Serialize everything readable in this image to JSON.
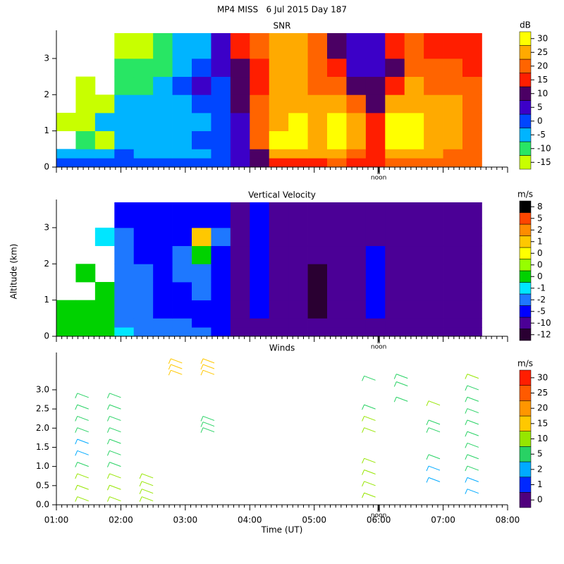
{
  "title": "MP4 MISS   6 Jul 2015 Day 187",
  "chart_data": [
    {
      "type": "heatmap",
      "title": "SNR",
      "ylabel": "Altitude (km)",
      "xlim": [
        1,
        8
      ],
      "xticks": [
        1,
        2,
        3,
        4,
        5,
        6,
        7,
        8
      ],
      "ylim": [
        0,
        3.7
      ],
      "yticks": [
        0,
        1,
        2,
        3
      ],
      "annotations": [
        {
          "text": "noon",
          "x": 6
        }
      ],
      "xbins": [
        1,
        1.3,
        1.6,
        1.9,
        2.2,
        2.5,
        2.8,
        3.1,
        3.4,
        3.7,
        4,
        4.3,
        4.6,
        4.9,
        5.2,
        5.5,
        5.8,
        6.1,
        6.4,
        6.7,
        7,
        7.3,
        7.6
      ],
      "ybins": [
        0,
        0.25,
        0.5,
        1,
        1.5,
        2,
        2.5,
        3,
        3.7
      ],
      "z": [
        [
          0,
          0,
          0,
          0,
          0,
          0,
          0,
          0,
          0,
          5,
          10,
          15,
          15,
          15,
          20,
          15,
          15,
          20,
          20,
          20,
          20,
          20
        ],
        [
          -5,
          -5,
          -5,
          0,
          -5,
          -5,
          -5,
          -5,
          0,
          5,
          10,
          25,
          25,
          25,
          25,
          20,
          15,
          25,
          25,
          25,
          20,
          20
        ],
        [
          null,
          -10,
          -15,
          -5,
          -5,
          -5,
          -5,
          0,
          0,
          5,
          20,
          30,
          30,
          25,
          30,
          25,
          15,
          30,
          30,
          25,
          25,
          20
        ],
        [
          -15,
          -15,
          -5,
          -5,
          -5,
          -5,
          -5,
          -5,
          0,
          5,
          20,
          25,
          30,
          25,
          30,
          25,
          15,
          30,
          30,
          25,
          25,
          20
        ],
        [
          null,
          -15,
          -15,
          -5,
          -5,
          -5,
          -5,
          0,
          0,
          10,
          20,
          25,
          25,
          25,
          25,
          20,
          10,
          25,
          25,
          25,
          25,
          20
        ],
        [
          null,
          -15,
          null,
          -10,
          -10,
          -5,
          0,
          5,
          0,
          10,
          15,
          25,
          25,
          20,
          20,
          10,
          10,
          15,
          25,
          20,
          20,
          20
        ],
        [
          null,
          null,
          null,
          -10,
          -10,
          -10,
          -5,
          0,
          5,
          10,
          15,
          25,
          25,
          20,
          15,
          5,
          5,
          10,
          20,
          20,
          20,
          15
        ],
        [
          null,
          null,
          null,
          -15,
          -15,
          -10,
          -5,
          -5,
          5,
          15,
          20,
          25,
          25,
          20,
          10,
          5,
          5,
          15,
          20,
          15,
          15,
          15
        ]
      ],
      "colorbar": {
        "label": "dB",
        "ticks": [
          -15,
          -10,
          -5,
          0,
          5,
          10,
          15,
          20,
          25,
          30
        ],
        "colors": [
          "#c8ff00",
          "#28e664",
          "#00b4ff",
          "#0046ff",
          "#3c00c8",
          "#4b0064",
          "#ff1e00",
          "#ff6400",
          "#ffaa00",
          "#ffff00"
        ]
      }
    },
    {
      "type": "heatmap",
      "title": "Vertical Velocity",
      "xlim": [
        1,
        8
      ],
      "xticks": [
        1,
        2,
        3,
        4,
        5,
        6,
        7,
        8
      ],
      "ylim": [
        0,
        3.7
      ],
      "yticks": [
        0,
        1,
        2,
        3
      ],
      "annotations": [
        {
          "text": "noon",
          "x": 6
        }
      ],
      "xbins": [
        1,
        1.3,
        1.6,
        1.9,
        2.2,
        2.5,
        2.8,
        3.1,
        3.4,
        3.7,
        4,
        4.3,
        4.6,
        4.9,
        5.2,
        5.5,
        5.8,
        6.1,
        6.4,
        6.7,
        7,
        7.3,
        7.6
      ],
      "ybins": [
        0,
        0.25,
        0.5,
        1,
        1.5,
        2,
        2.5,
        3,
        3.7
      ],
      "z": [
        [
          0,
          0,
          0,
          -1,
          -2,
          -2,
          -2,
          -2,
          -5,
          -10,
          -10,
          -10,
          -10,
          -10,
          -10,
          -10,
          -10,
          -10,
          -10,
          -10,
          -10,
          -10
        ],
        [
          0,
          0,
          0,
          -2,
          -2,
          -2,
          -2,
          -5,
          -5,
          -10,
          -10,
          -10,
          -10,
          -10,
          -10,
          -10,
          -10,
          -10,
          -10,
          -10,
          -10,
          -10
        ],
        [
          0,
          0,
          0,
          -2,
          -2,
          -5,
          -5,
          -5,
          -5,
          -10,
          -5,
          -10,
          -10,
          -12,
          -10,
          -10,
          -5,
          -10,
          -10,
          -10,
          -10,
          -10
        ],
        [
          null,
          null,
          0,
          -2,
          -2,
          -5,
          -5,
          -2,
          -5,
          -10,
          -5,
          -10,
          -10,
          -12,
          -10,
          -10,
          -5,
          -10,
          -10,
          -10,
          -10,
          -10
        ],
        [
          null,
          0,
          null,
          -2,
          -2,
          -5,
          -2,
          -2,
          -5,
          -10,
          -5,
          -10,
          -10,
          -12,
          -10,
          -10,
          -5,
          -10,
          -10,
          -10,
          -10,
          -10
        ],
        [
          null,
          null,
          null,
          -2,
          -5,
          -5,
          -2,
          0,
          -5,
          -10,
          -5,
          -10,
          -10,
          -10,
          -10,
          -10,
          -5,
          -10,
          -10,
          -10,
          -10,
          -10
        ],
        [
          null,
          null,
          -1,
          -2,
          -5,
          -5,
          -5,
          1,
          -2,
          -10,
          -5,
          -10,
          -10,
          -10,
          -10,
          -10,
          -10,
          -10,
          -10,
          -10,
          -10,
          -10
        ],
        [
          null,
          null,
          null,
          -5,
          -5,
          -5,
          -5,
          -5,
          -5,
          -10,
          -5,
          -10,
          -10,
          -10,
          -10,
          -10,
          -10,
          -10,
          -10,
          -10,
          -10,
          -10
        ]
      ],
      "colorbar": {
        "label": "m/s",
        "ticks": [
          -12,
          -10,
          -5,
          -2,
          -1,
          {
            "value": -0.3,
            "label": "0"
          },
          {
            "value": 0.1,
            "label": "0"
          },
          {
            "value": 0.4,
            "label": "0"
          },
          1,
          2,
          5,
          8
        ],
        "colors": [
          "#2a0032",
          "#4b0096",
          "#0000ff",
          "#1e78ff",
          "#00e6ff",
          "#00d200",
          "#96ff00",
          "#ffff00",
          "#ffc800",
          "#ff8c00",
          "#ff4600",
          "#000000"
        ]
      }
    },
    {
      "type": "barbs",
      "title": "Winds",
      "xlabel": "Time (UT)",
      "xlim": [
        1,
        8
      ],
      "xticks": [
        {
          "value": 1,
          "label": "01:00"
        },
        {
          "value": 2,
          "label": "02:00"
        },
        {
          "value": 3,
          "label": "03:00"
        },
        {
          "value": 4,
          "label": "04:00"
        },
        {
          "value": 5,
          "label": "05:00"
        },
        {
          "value": 6,
          "label": "06:00"
        },
        {
          "value": 7,
          "label": "07:00"
        },
        {
          "value": 8,
          "label": "08:00"
        }
      ],
      "ylim": [
        0,
        3.9
      ],
      "yticks": [
        {
          "value": 0,
          "label": "0.0"
        },
        0.5,
        {
          "value": 1,
          "label": "1.0"
        },
        1.5,
        {
          "value": 2,
          "label": "2.0"
        },
        2.5,
        {
          "value": 3,
          "label": "3.0"
        }
      ],
      "annotations": [
        {
          "text": "noon",
          "x": 6
        }
      ],
      "profiles": [
        {
          "time": 1.5,
          "heights": [
            0.1,
            0.4,
            0.7,
            1.0,
            1.3,
            1.6,
            1.9,
            2.2,
            2.5,
            2.8
          ],
          "speeds": [
            11,
            11,
            10,
            6,
            4,
            3,
            5,
            6,
            6,
            7
          ]
        },
        {
          "time": 2.0,
          "heights": [
            0.1,
            0.4,
            0.7,
            1.0,
            1.3,
            1.6,
            1.9,
            2.2,
            2.5,
            2.8
          ],
          "speeds": [
            11,
            11,
            11,
            9,
            6,
            5,
            5,
            5,
            6,
            6
          ]
        },
        {
          "time": 2.5,
          "heights": [
            0.1,
            0.3,
            0.5,
            0.7
          ],
          "speeds": [
            11,
            11,
            11,
            11
          ]
        },
        {
          "time": 2.95,
          "heights": [
            3.4,
            3.55,
            3.7
          ],
          "speeds": [
            17,
            17,
            17
          ]
        },
        {
          "time": 3.45,
          "heights": [
            3.4,
            3.55,
            3.7
          ],
          "speeds": [
            17,
            17,
            16
          ]
        },
        {
          "time": 3.45,
          "heights": [
            1.9,
            2.05,
            2.2
          ],
          "speeds": [
            7,
            8,
            8
          ]
        },
        {
          "time": 5.95,
          "heights": [
            0.2,
            0.5,
            0.8,
            1.1
          ],
          "speeds": [
            11,
            11,
            10,
            10
          ]
        },
        {
          "time": 5.95,
          "heights": [
            1.9,
            2.2,
            2.5
          ],
          "speeds": [
            10,
            10,
            9
          ]
        },
        {
          "time": 5.95,
          "heights": [
            3.25
          ],
          "speeds": [
            8
          ]
        },
        {
          "time": 6.45,
          "heights": [
            2.7,
            3.1,
            3.3
          ],
          "speeds": [
            7,
            6,
            6
          ]
        },
        {
          "time": 6.95,
          "heights": [
            0.6,
            0.9,
            1.2
          ],
          "speeds": [
            3,
            4,
            6
          ]
        },
        {
          "time": 6.95,
          "heights": [
            1.9,
            2.1,
            2.6
          ],
          "speeds": [
            9,
            9,
            11
          ]
        },
        {
          "time": 7.55,
          "heights": [
            0.3,
            0.6,
            0.9,
            1.2,
            1.5,
            1.8,
            2.1,
            2.4,
            2.7,
            3.0,
            3.3
          ],
          "speeds": [
            3,
            4,
            6,
            7,
            7,
            8,
            7,
            8,
            8,
            9,
            10
          ]
        }
      ],
      "colorbar": {
        "label": "m/s",
        "ticks": [
          0,
          1,
          2,
          5,
          10,
          15,
          20,
          25,
          30
        ],
        "colors": [
          "#50007d",
          "#0028ff",
          "#00aaff",
          "#28d264",
          "#96e600",
          "#ffc800",
          "#ff9600",
          "#ff5a00",
          "#ff1e00"
        ]
      }
    }
  ]
}
